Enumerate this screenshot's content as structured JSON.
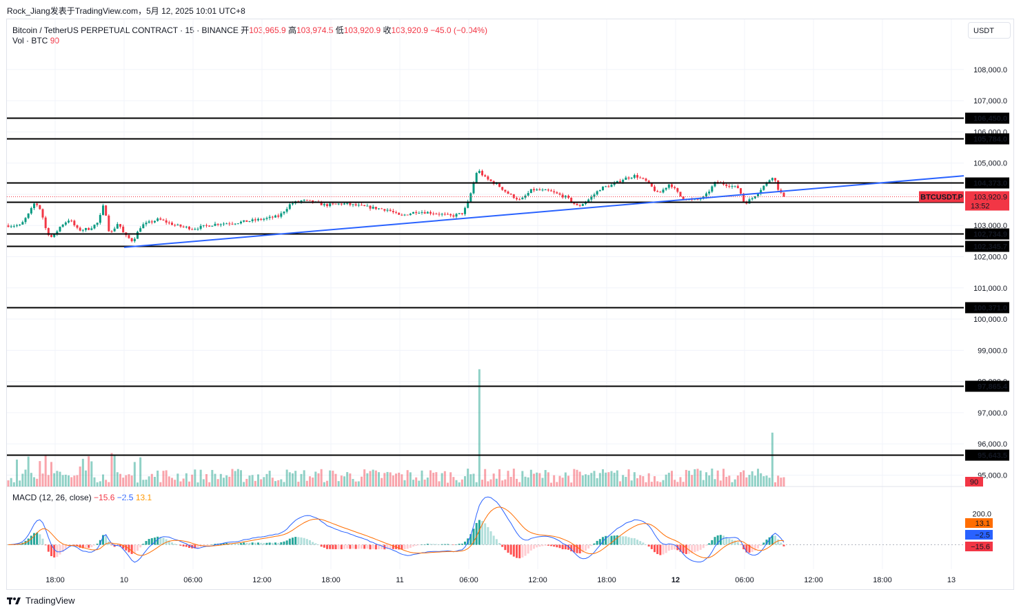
{
  "header": {
    "author": "Rock_Jiang",
    "published": "发表于TradingView.com，5月 12, 2025 10:01 UTC+8"
  },
  "legend": {
    "symbol": "Bitcoin / TetherUS PERPETUAL CONTRACT · 15 · BINANCE",
    "open_label": "开",
    "open": "103,965.9",
    "high_label": "高",
    "high": "103,974.5",
    "low_label": "低",
    "low": "103,920.9",
    "close_label": "收",
    "close": "103,920.9",
    "change": "−45.0 (−0.04%)",
    "vol_label": "Vol · BTC",
    "vol_value": "90",
    "macd_label": "MACD (12, 26, close)",
    "macd_hist": "−15.6",
    "macd_line": "−2.5",
    "macd_signal": "13.1"
  },
  "currency": "USDT",
  "price_tag": {
    "symbol": "BTCUSDT.P",
    "price": "103,920.9",
    "countdown": "13:52"
  },
  "volume_tag": "90",
  "macd_tags": {
    "signal": "13.1",
    "macd": "−2.5",
    "hist": "−15.6",
    "scale_label": "200.0"
  },
  "footer": {
    "brand": "TradingView",
    "logo_icon": "tradingview-logo-icon"
  },
  "colors": {
    "up": "#089981",
    "down": "#f23645",
    "trend": "#2962ff",
    "level": "#000000",
    "macd": "#2962ff",
    "signal": "#ff6d00"
  },
  "chart_data": {
    "type": "candlestick",
    "timeframe": "15",
    "y_ticks": [
      95000,
      96000,
      97000,
      98000,
      99000,
      100000,
      101000,
      102000,
      103000,
      104000,
      105000,
      106000,
      107000,
      108000
    ],
    "y_tick_labels": [
      "95,000.0",
      "96,000.0",
      "97,000.0",
      "98,000.0",
      "99,000.0",
      "100,000.0",
      "101,000.0",
      "102,000.0",
      "103,000.0",
      "104,000.0",
      "105,000.0",
      "106,000.0",
      "107,000.0",
      "108,000.0"
    ],
    "x_ticks": [
      "18:00",
      "10",
      "06:00",
      "12:00",
      "18:00",
      "11",
      "06:00",
      "12:00",
      "18:00",
      "12",
      "06:00",
      "12:00",
      "18:00",
      "13"
    ],
    "horizontal_levels": [
      106450.0,
      105784.0,
      104373.0,
      103746.8,
      102734.9,
      102345.7,
      100371.0,
      97865.4,
      95643.5
    ],
    "horizontal_level_labels": [
      "106,450.0",
      "105,784.0",
      "104,373.0",
      "103,746.8",
      "102,734.9",
      "102,345.7",
      "100,371.0",
      "97,865.4",
      "95,643.5"
    ],
    "trendline": {
      "from": {
        "time": "10 00:00",
        "price": 102300
      },
      "to": {
        "time": "12 11:00",
        "price": 104150
      }
    },
    "last_price": 103920.9,
    "price_series": [
      [
        "09 15:00",
        103000
      ],
      [
        "09 15:45",
        103400
      ],
      [
        "09 16:15",
        103750
      ],
      [
        "09 16:45",
        103500
      ],
      [
        "09 17:15",
        102800
      ],
      [
        "09 17:45",
        102600
      ],
      [
        "09 18:30",
        103000
      ],
      [
        "09 19:15",
        103200
      ],
      [
        "09 20:00",
        102850
      ],
      [
        "09 21:00",
        102900
      ],
      [
        "09 21:45",
        103100
      ],
      [
        "09 22:15",
        103700
      ],
      [
        "09 22:45",
        102700
      ],
      [
        "09 23:30",
        103100
      ],
      [
        "10 00:00",
        102700
      ],
      [
        "10 00:45",
        102500
      ],
      [
        "10 01:30",
        103000
      ],
      [
        "10 03:00",
        103200
      ],
      [
        "10 04:30",
        103000
      ],
      [
        "10 06:00",
        102900
      ],
      [
        "10 08:00",
        103050
      ],
      [
        "10 10:00",
        103100
      ],
      [
        "10 12:00",
        103200
      ],
      [
        "10 13:30",
        103300
      ],
      [
        "10 14:30",
        103700
      ],
      [
        "10 15:30",
        103800
      ],
      [
        "10 16:30",
        103750
      ],
      [
        "10 17:30",
        103650
      ],
      [
        "10 19:00",
        103700
      ],
      [
        "10 21:00",
        103600
      ],
      [
        "10 23:00",
        103500
      ],
      [
        "11 00:00",
        103300
      ],
      [
        "11 01:30",
        103450
      ],
      [
        "11 03:00",
        103400
      ],
      [
        "11 04:30",
        103300
      ],
      [
        "11 05:30",
        103400
      ],
      [
        "11 06:00",
        103800
      ],
      [
        "11 06:45",
        104800
      ],
      [
        "11 07:30",
        104500
      ],
      [
        "11 08:30",
        104300
      ],
      [
        "11 09:30",
        104000
      ],
      [
        "11 10:30",
        103800
      ],
      [
        "11 11:30",
        104150
      ],
      [
        "11 13:00",
        104100
      ],
      [
        "11 14:30",
        103900
      ],
      [
        "11 15:30",
        103600
      ],
      [
        "11 16:30",
        103850
      ],
      [
        "11 17:30",
        104200
      ],
      [
        "11 18:30",
        104300
      ],
      [
        "11 19:30",
        104500
      ],
      [
        "11 20:30",
        104600
      ],
      [
        "11 21:30",
        104400
      ],
      [
        "11 22:30",
        104000
      ],
      [
        "11 23:30",
        104350
      ],
      [
        "12 00:30",
        103900
      ],
      [
        "12 01:30",
        103800
      ],
      [
        "12 02:30",
        103900
      ],
      [
        "12 03:30",
        104400
      ],
      [
        "12 04:30",
        104300
      ],
      [
        "12 05:30",
        104200
      ],
      [
        "12 06:00",
        103700
      ],
      [
        "12 06:45",
        103900
      ],
      [
        "12 07:45",
        104300
      ],
      [
        "12 08:30",
        104600
      ],
      [
        "12 09:00",
        104100
      ],
      [
        "12 09:30",
        103920.9
      ]
    ],
    "volume_highlights": [
      [
        "11 07:00",
        3700
      ],
      [
        "12 08:30",
        1700
      ]
    ],
    "macd_scale": [
      200.0
    ],
    "macd_last": {
      "macd": -2.5,
      "signal": 13.1,
      "hist": -15.6
    }
  }
}
